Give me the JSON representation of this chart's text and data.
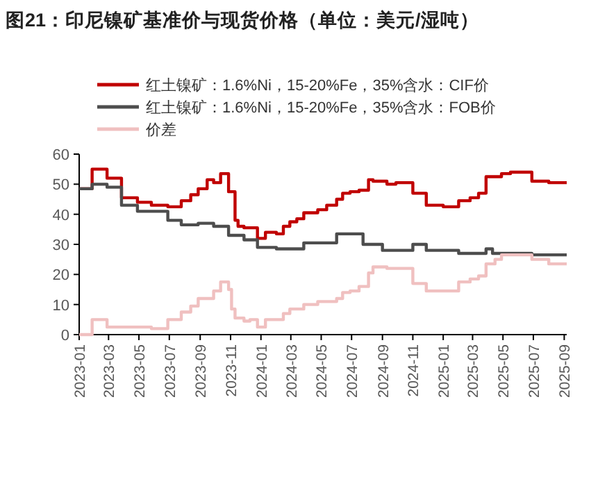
{
  "chart_data": {
    "type": "step",
    "title": "图21：印尼镍矿基准价与现货价格（单位：美元/湿吨）",
    "xlim": [
      "2023-01",
      "2025-09-06"
    ],
    "xticks": [
      "2023-01",
      "2023-03",
      "2023-05",
      "2023-07",
      "2023-09",
      "2023-11",
      "2024-01",
      "2024-03",
      "2024-05",
      "2024-07",
      "2024-09",
      "2024-11",
      "2025-01",
      "2025-03",
      "2025-05",
      "2025-07",
      "2025-09"
    ],
    "ylim": [
      0,
      60
    ],
    "yticks": [
      0,
      10,
      20,
      30,
      40,
      50,
      60
    ],
    "grid": false,
    "legend": "top left",
    "series": [
      {
        "name": "红土镍矿：1.6%Ni，15-20%Fe，35%含水：CIF价",
        "color": "#c00000",
        "x": [
          "2023-01-01",
          "2023-01-27",
          "2023-02-26",
          "2023-03-27",
          "2023-04-28",
          "2023-05-26",
          "2023-06-28",
          "2023-07-25",
          "2023-08-13",
          "2023-08-28",
          "2023-09-15",
          "2023-09-28",
          "2023-10-12",
          "2023-10-28",
          "2023-11-10",
          "2023-11-16",
          "2023-11-28",
          "2023-12-25",
          "2024-01-10",
          "2024-02-01",
          "2024-02-15",
          "2024-02-28",
          "2024-03-13",
          "2024-03-27",
          "2024-04-24",
          "2024-05-12",
          "2024-06-01",
          "2024-06-13",
          "2024-06-28",
          "2024-07-16",
          "2024-08-04",
          "2024-08-13",
          "2024-09-10",
          "2024-09-28",
          "2024-11-01",
          "2024-11-28",
          "2025-01-01",
          "2025-02-01",
          "2025-02-24",
          "2025-03-13",
          "2025-03-28",
          "2025-04-28",
          "2025-05-16",
          "2025-06-28",
          "2025-08-01",
          "2025-09-06"
        ],
        "values": [
          48.5,
          55,
          52,
          45.5,
          44,
          43,
          42.5,
          44.5,
          46.5,
          48.5,
          51.5,
          50.5,
          53.5,
          47.5,
          38,
          36,
          35.5,
          32,
          34,
          33.5,
          36,
          37.5,
          38.5,
          40.5,
          41.5,
          43,
          45,
          47,
          47.5,
          48,
          51.5,
          51,
          50,
          50.5,
          47,
          43,
          42.5,
          44.5,
          45.5,
          47,
          52.5,
          53.5,
          54,
          51,
          50.5,
          50.5
        ]
      },
      {
        "name": "红土镍矿：1.6%Ni，15-20%Fe，35%含水：FOB价",
        "color": "#4d4d4d",
        "x": [
          "2023-01-01",
          "2023-01-27",
          "2023-02-26",
          "2023-03-27",
          "2023-04-28",
          "2023-06-28",
          "2023-07-25",
          "2023-08-28",
          "2023-09-28",
          "2023-10-28",
          "2023-11-28",
          "2023-12-25",
          "2024-02-01",
          "2024-03-27",
          "2024-06-01",
          "2024-07-24",
          "2024-09-01",
          "2024-11-01",
          "2024-11-28",
          "2025-02-01",
          "2025-03-28",
          "2025-04-10",
          "2025-06-28",
          "2025-09-06"
        ],
        "values": [
          48.5,
          50,
          49,
          43,
          41,
          38,
          36.5,
          37,
          36,
          33,
          31.5,
          29,
          28.5,
          30.5,
          33.5,
          30,
          28,
          30,
          28,
          27,
          28.5,
          27,
          26.5,
          26.5
        ]
      },
      {
        "name": "价差",
        "color": "#f0c0c0",
        "x": [
          "2023-01-01",
          "2023-01-27",
          "2023-02-26",
          "2023-05-26",
          "2023-06-28",
          "2023-07-25",
          "2023-08-13",
          "2023-08-28",
          "2023-09-28",
          "2023-10-12",
          "2023-10-28",
          "2023-11-03",
          "2023-11-10",
          "2023-11-28",
          "2023-12-10",
          "2023-12-25",
          "2024-01-10",
          "2024-02-15",
          "2024-02-28",
          "2024-03-27",
          "2024-04-24",
          "2024-06-01",
          "2024-06-13",
          "2024-06-28",
          "2024-07-16",
          "2024-08-04",
          "2024-08-13",
          "2024-09-10",
          "2024-11-01",
          "2024-11-28",
          "2025-02-01",
          "2025-02-24",
          "2025-03-13",
          "2025-03-28",
          "2025-04-15",
          "2025-04-28",
          "2025-06-28",
          "2025-08-01",
          "2025-09-06"
        ],
        "values": [
          0,
          5,
          2.5,
          2,
          5,
          7.5,
          9.5,
          12,
          14.5,
          17.5,
          15,
          8.5,
          5.5,
          4.5,
          5,
          2.5,
          5,
          7,
          8.5,
          10,
          11,
          12,
          14,
          14.5,
          16,
          20.5,
          22.5,
          22,
          17,
          14.5,
          17.5,
          18.5,
          19.5,
          23.5,
          25,
          26.5,
          25,
          23.5,
          23.5
        ]
      }
    ]
  }
}
